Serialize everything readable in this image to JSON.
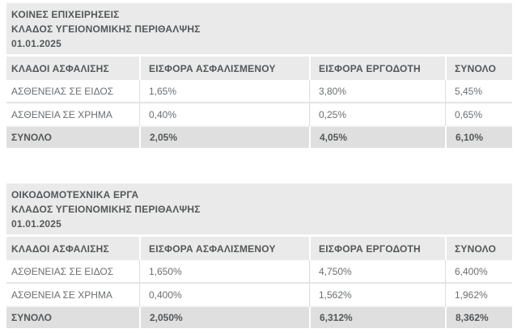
{
  "colors": {
    "header_bg": "#eaeaea",
    "total_row_bg": "#dfdfdf",
    "heading_text": "#54585a",
    "body_text": "#6a6e71",
    "divider": "#dddddd",
    "page_bg": "#ffffff"
  },
  "tables": [
    {
      "title_lines": [
        "ΚΟΙΝΕΣ ΕΠΙΧΕΙΡΗΣΕΙΣ",
        "ΚΛΑΔΟΣ ΥΓΕΙΟΝΟΜΙΚΗΣ ΠΕΡΙΘΑΛΨΗΣ",
        "01.01.2025"
      ],
      "columns": [
        "ΚΛΑΔΟΙ ΑΣΦΑΛΙΣΗΣ",
        "ΕΙΣΦΟΡΑ ΑΣΦΑΛΙΣΜΕΝΟΥ",
        "ΕΙΣΦΟΡΑ ΕΡΓΟΔΟΤΗ",
        "ΣΥΝΟΛΟ"
      ],
      "rows": [
        {
          "cells": [
            "ΑΣΘΕΝΕΙΑΣ ΣΕ ΕΙΔΟΣ",
            "1,65%",
            "3,80%",
            "5,45%"
          ]
        },
        {
          "cells": [
            "ΑΣΘΕΝΕΙΑ ΣΕ ΧΡΗΜΑ",
            "0,40%",
            "0,25%",
            "0,65%"
          ]
        },
        {
          "cells": [
            "ΣΥΝΟΛΟ",
            "2,05%",
            "4,05%",
            "6,10%"
          ],
          "is_total": true
        }
      ]
    },
    {
      "title_lines": [
        "ΟΙΚΟΔΟΜΟΤΕΧΝΙΚΑ ΕΡΓΑ",
        "ΚΛΑΔΟΣ ΥΓΕΙΟΝΟΜΙΚΗΣ ΠΕΡΙΘΑΛΨΗΣ",
        "01.01.2025"
      ],
      "columns": [
        "ΚΛΑΔΟΙ ΑΣΦΑΛΙΣΗΣ",
        "ΕΙΣΦΟΡΑ ΑΣΦΑΛΙΣΜΕΝΟΥ",
        "ΕΙΣΦΟΡΑ ΕΡΓΟΔΟΤΗ",
        "ΣΥΝΟΛΟ"
      ],
      "rows": [
        {
          "cells": [
            "ΑΣΘΕΝΕΙΑΣ ΣΕ ΕΙΔΟΣ",
            "1,650%",
            "4,750%",
            "6,400%"
          ]
        },
        {
          "cells": [
            "ΑΣΘΕΝΕΙΑ ΣΕ ΧΡΗΜΑ",
            "0,400%",
            "1,562%",
            "1,962%"
          ]
        },
        {
          "cells": [
            "ΣΥΝΟΛΟ",
            "2,050%",
            "6,312%",
            "8,362%"
          ],
          "is_total": true
        }
      ]
    }
  ]
}
